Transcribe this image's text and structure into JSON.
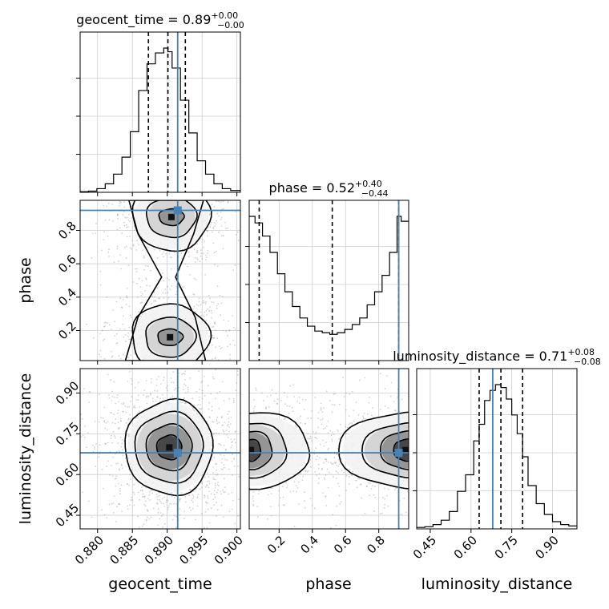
{
  "chart_data": {
    "type": "corner",
    "parameters": [
      "geocent_time",
      "phase",
      "luminosity_distance"
    ],
    "ranges": {
      "geocent_time": [
        0.8775,
        0.9005
      ],
      "phase": [
        0.02,
        0.98
      ],
      "luminosity_distance": [
        0.4,
        0.99
      ]
    },
    "truths": {
      "geocent_time": 0.8915,
      "phase": 0.92,
      "luminosity_distance": 0.68
    },
    "truth_color": "#4682b4",
    "quantiles": {
      "geocent_time": [
        0.8873,
        0.8901,
        0.8926
      ],
      "phase": [
        0.08,
        0.52,
        0.92
      ],
      "luminosity_distance": [
        0.63,
        0.71,
        0.79
      ]
    },
    "titles": [
      {
        "param": "geocent_time",
        "prefix": "geocent_time = 0.89",
        "plus": "+0.00",
        "minus": "−0.00"
      },
      {
        "param": "phase",
        "prefix": "phase = 0.52",
        "plus": "+0.40",
        "minus": "−0.44"
      },
      {
        "param": "luminosity_distance",
        "prefix": "luminosity_distance = 0.71",
        "plus": "+0.08",
        "minus": "−0.08"
      }
    ],
    "ticks": {
      "geocent_time": [
        "0.880",
        "0.885",
        "0.890",
        "0.895",
        "0.900"
      ],
      "phase": [
        "0.2",
        "0.4",
        "0.6",
        "0.8"
      ],
      "luminosity_distance": [
        "0.45",
        "0.60",
        "0.75",
        "0.90"
      ]
    },
    "tick_values": {
      "geocent_time": [
        0.88,
        0.885,
        0.89,
        0.895,
        0.9
      ],
      "phase": [
        0.2,
        0.4,
        0.6,
        0.8
      ],
      "luminosity_distance": [
        0.45,
        0.6,
        0.75,
        0.9
      ]
    },
    "histograms": {
      "geocent_time": {
        "bin_edges": [
          0.8775,
          0.8787,
          0.8799,
          0.8811,
          0.8823,
          0.8835,
          0.8847,
          0.8859,
          0.8871,
          0.8883,
          0.8895,
          0.8901,
          0.8907,
          0.8919,
          0.8931,
          0.8943,
          0.8955,
          0.8967,
          0.8979,
          0.8991,
          0.9005
        ],
        "counts": [
          1,
          2,
          6,
          14,
          30,
          58,
          100,
          168,
          212,
          230,
          238,
          232,
          205,
          152,
          98,
          52,
          30,
          14,
          6,
          3
        ]
      },
      "phase": {
        "bin_edges": [
          0.02,
          0.055,
          0.1,
          0.145,
          0.19,
          0.235,
          0.28,
          0.325,
          0.37,
          0.415,
          0.46,
          0.505,
          0.55,
          0.595,
          0.64,
          0.685,
          0.73,
          0.775,
          0.82,
          0.865,
          0.91,
          0.935,
          0.98
        ],
        "counts": [
          88,
          84,
          76,
          66,
          53,
          42,
          33,
          26,
          21,
          18,
          17,
          16,
          17,
          19,
          22,
          26,
          34,
          42,
          52,
          66,
          88,
          85
        ]
      },
      "luminosity_distance": {
        "bin_edges": [
          0.4,
          0.43,
          0.46,
          0.49,
          0.52,
          0.55,
          0.58,
          0.61,
          0.63,
          0.65,
          0.67,
          0.69,
          0.71,
          0.73,
          0.75,
          0.77,
          0.79,
          0.81,
          0.84,
          0.87,
          0.9,
          0.93,
          0.96,
          0.99
        ],
        "counts": [
          2,
          3,
          6,
          12,
          24,
          52,
          75,
          122,
          145,
          178,
          192,
          200,
          196,
          180,
          158,
          132,
          100,
          60,
          35,
          20,
          10,
          6,
          4
        ]
      }
    },
    "contours": {
      "phase_vs_geocent_time": {
        "x": "geocent_time",
        "y": "phase",
        "blobs": [
          {
            "cx": 0.8906,
            "cy": 0.88,
            "levels": [
              [
                0.0018,
                0.05
              ],
              [
                0.0036,
                0.12
              ],
              [
                0.0056,
                0.2
              ]
            ]
          },
          {
            "cx": 0.8904,
            "cy": 0.16,
            "levels": [
              [
                0.0018,
                0.05
              ],
              [
                0.0036,
                0.12
              ],
              [
                0.0056,
                0.2
              ]
            ]
          }
        ],
        "outer_hourglass": [
          [
            0.8845,
            0.98
          ],
          [
            0.8858,
            0.78
          ],
          [
            0.8892,
            0.52
          ],
          [
            0.8858,
            0.28
          ],
          [
            0.884,
            0.02
          ],
          [
            0.8955,
            0.02
          ],
          [
            0.894,
            0.28
          ],
          [
            0.8912,
            0.52
          ],
          [
            0.8938,
            0.78
          ],
          [
            0.8952,
            0.98
          ]
        ]
      },
      "luminosity_distance_vs_geocent_time": {
        "x": "geocent_time",
        "y": "luminosity_distance",
        "blobs": [
          {
            "cx": 0.8903,
            "cy": 0.7,
            "levels": [
              [
                0.0018,
                0.045
              ],
              [
                0.0033,
                0.085
              ],
              [
                0.0049,
                0.13
              ],
              [
                0.0063,
                0.175
              ]
            ]
          }
        ]
      },
      "luminosity_distance_vs_phase": {
        "x": "phase",
        "y": "luminosity_distance",
        "blobs": [
          {
            "cx": 0.03,
            "cy": 0.69,
            "levels": [
              [
                0.06,
                0.04
              ],
              [
                0.13,
                0.07
              ],
              [
                0.22,
                0.1
              ],
              [
                0.36,
                0.14
              ]
            ]
          },
          {
            "cx": 0.96,
            "cy": 0.69,
            "levels": [
              [
                0.07,
                0.04
              ],
              [
                0.15,
                0.07
              ],
              [
                0.26,
                0.1
              ],
              [
                0.4,
                0.14
              ]
            ]
          }
        ]
      }
    },
    "axis_labels": {
      "x": [
        "geocent_time",
        "phase",
        "luminosity_distance"
      ],
      "y": [
        "phase",
        "luminosity_distance"
      ]
    },
    "grid": true
  }
}
